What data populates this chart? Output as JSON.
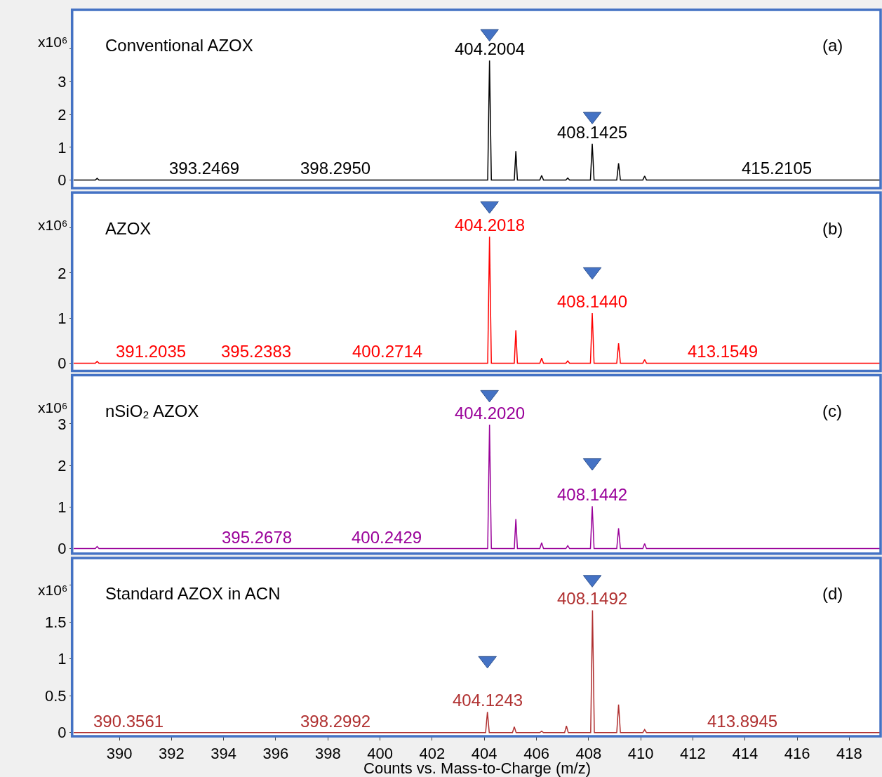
{
  "chart_data": [
    {
      "type": "line",
      "title": "Conventional AZOX",
      "ylabel": "x10⁶",
      "xlim": [
        388.25,
        419.2
      ],
      "ylim": [
        -0.25,
        5.2
      ],
      "yticks": [
        0,
        1,
        2,
        3,
        {
          "value": 4,
          "label": null
        }
      ],
      "tick_labels": "y",
      "annotations": [
        "(a)",
        {
          "text": "404.2004",
          "x": 404.2004,
          "y": 3.65
        },
        {
          "text": "408.1425",
          "x": 408.1425,
          "y": 1.11
        },
        {
          "text": "393.2469",
          "x": 393.2469,
          "y": 0
        },
        {
          "text": "398.2950",
          "x": 398.295,
          "y": 0
        },
        {
          "text": "415.2105",
          "x": 415.2105,
          "y": 0
        }
      ],
      "series": [
        {
          "color": "#000000",
          "x": [
            388.25,
            389.08,
            389.15,
            389.22,
            404.13,
            404.2,
            404.27,
            405.15,
            405.21,
            405.27,
            406.13,
            406.2,
            406.27,
            407.13,
            407.2,
            407.27,
            408.07,
            408.14,
            408.21,
            409.08,
            409.15,
            409.22,
            410.08,
            410.15,
            410.22,
            419.2
          ],
          "values": [
            0,
            0,
            0.05,
            0,
            0,
            3.65,
            0,
            0,
            0.88,
            0,
            0,
            0.14,
            0,
            0,
            0.06,
            0,
            0,
            1.11,
            0,
            0,
            0.51,
            0,
            0,
            0.12,
            0,
            0
          ]
        },
        {
          "type": "scatter",
          "marker": "triangle",
          "color": "#4472c4",
          "x": [
            404.2,
            408.14
          ],
          "values": [
            4.48,
            1.95
          ]
        }
      ]
    },
    {
      "type": "line",
      "title": "AZOX",
      "ylabel": "x10⁶",
      "xlim": [
        388.25,
        419.2
      ],
      "ylim": [
        -0.17,
        3.78
      ],
      "yticks": [
        0,
        1,
        2,
        {
          "value": 3,
          "label": null
        }
      ],
      "tick_labels": "y",
      "annotations": [
        "(b)",
        {
          "text": "404.2018",
          "x": 404.2018,
          "y": 2.8
        },
        {
          "text": "408.1440",
          "x": 408.144,
          "y": 1.11
        },
        {
          "text": "391.2035",
          "x": 391.2035,
          "y": 0
        },
        {
          "text": "395.2383",
          "x": 395.2383,
          "y": 0
        },
        {
          "text": "400.2714",
          "x": 400.2714,
          "y": 0
        },
        {
          "text": "413.1549",
          "x": 413.1549,
          "y": 0
        }
      ],
      "series": [
        {
          "color": "#ff0000",
          "x": [
            388.25,
            389.08,
            389.15,
            389.22,
            404.13,
            404.2,
            404.27,
            405.15,
            405.21,
            405.27,
            406.13,
            406.2,
            406.27,
            407.13,
            407.2,
            407.27,
            408.07,
            408.14,
            408.21,
            409.08,
            409.15,
            409.22,
            410.08,
            410.15,
            410.22,
            419.2
          ],
          "values": [
            0,
            0,
            0.04,
            0,
            0,
            2.8,
            0,
            0,
            0.73,
            0,
            0,
            0.11,
            0,
            0,
            0.05,
            0,
            0,
            1.11,
            0,
            0,
            0.44,
            0,
            0,
            0.08,
            0,
            0
          ]
        },
        {
          "type": "scatter",
          "marker": "triangle",
          "color": "#4472c4",
          "x": [
            404.2,
            408.14
          ],
          "values": [
            3.49,
            2.03
          ]
        }
      ]
    },
    {
      "type": "line",
      "title": "nSiO₂ AZOX",
      "ylabel": "x10⁶",
      "xlim": [
        388.25,
        419.2
      ],
      "ylim": [
        -0.12,
        4.17
      ],
      "yticks": [
        0,
        1,
        2,
        3
      ],
      "tick_labels": "y",
      "annotations": [
        "(c)",
        {
          "text": "404.2020",
          "x": 404.202,
          "y": 2.98
        },
        {
          "text": "408.1442",
          "x": 408.1442,
          "y": 1.02
        },
        {
          "text": "395.2678",
          "x": 395.2678,
          "y": 0
        },
        {
          "text": "400.2429",
          "x": 400.2429,
          "y": 0
        }
      ],
      "series": [
        {
          "color": "#990099",
          "x": [
            388.25,
            389.08,
            389.15,
            389.22,
            404.13,
            404.2,
            404.27,
            405.15,
            405.21,
            405.27,
            406.13,
            406.2,
            406.27,
            407.13,
            407.2,
            407.27,
            408.07,
            408.14,
            408.21,
            409.08,
            409.15,
            409.22,
            410.08,
            410.15,
            410.22,
            419.2
          ],
          "values": [
            0,
            0,
            0.05,
            0,
            0,
            2.98,
            0,
            0,
            0.71,
            0,
            0,
            0.14,
            0,
            0,
            0.07,
            0,
            0,
            1.02,
            0,
            0,
            0.49,
            0,
            0,
            0.12,
            0,
            0
          ]
        },
        {
          "type": "scatter",
          "marker": "triangle",
          "color": "#4472c4",
          "x": [
            404.2,
            408.14
          ],
          "values": [
            3.71,
            2.07
          ]
        }
      ]
    },
    {
      "type": "line",
      "title": "Standard AZOX in ACN",
      "ylabel": "x10⁶",
      "xlabel": "Counts vs. Mass-to-Charge (m/z)",
      "xlim": [
        388.25,
        419.2
      ],
      "ylim": [
        -0.05,
        2.37
      ],
      "xticks": [
        390,
        392,
        394,
        396,
        398,
        400,
        402,
        404,
        406,
        408,
        410,
        412,
        414,
        416,
        418
      ],
      "yticks": [
        0,
        0.5,
        1,
        1.5,
        {
          "value": 2,
          "label": null
        }
      ],
      "annotations": [
        "(d)",
        {
          "text": "408.1492",
          "x": 408.1492,
          "y": 1.66
        },
        {
          "text": "404.1243",
          "x": 404.1243,
          "y": 0.28
        },
        {
          "text": "390.3561",
          "x": 390.3561,
          "y": 0
        },
        {
          "text": "398.2992",
          "x": 398.2992,
          "y": 0
        },
        {
          "text": "413.8945",
          "x": 413.8945,
          "y": 0
        }
      ],
      "series": [
        {
          "color": "#b03030",
          "x": [
            388.25,
            404.05,
            404.12,
            404.19,
            405.08,
            405.15,
            405.22,
            406.13,
            406.2,
            406.27,
            407.08,
            407.15,
            407.22,
            408.08,
            408.15,
            408.22,
            409.08,
            409.15,
            409.22,
            410.08,
            410.15,
            410.22,
            419.2
          ],
          "values": [
            0,
            0,
            0.28,
            0,
            0,
            0.08,
            0,
            0,
            0.02,
            0,
            0,
            0.09,
            0,
            0,
            1.66,
            0,
            0,
            0.38,
            0,
            0,
            0.04,
            0,
            0
          ]
        },
        {
          "type": "scatter",
          "marker": "triangle",
          "color": "#4472c4",
          "x": [
            404.12,
            408.14
          ],
          "values": [
            0.98,
            2.08
          ]
        }
      ]
    }
  ]
}
